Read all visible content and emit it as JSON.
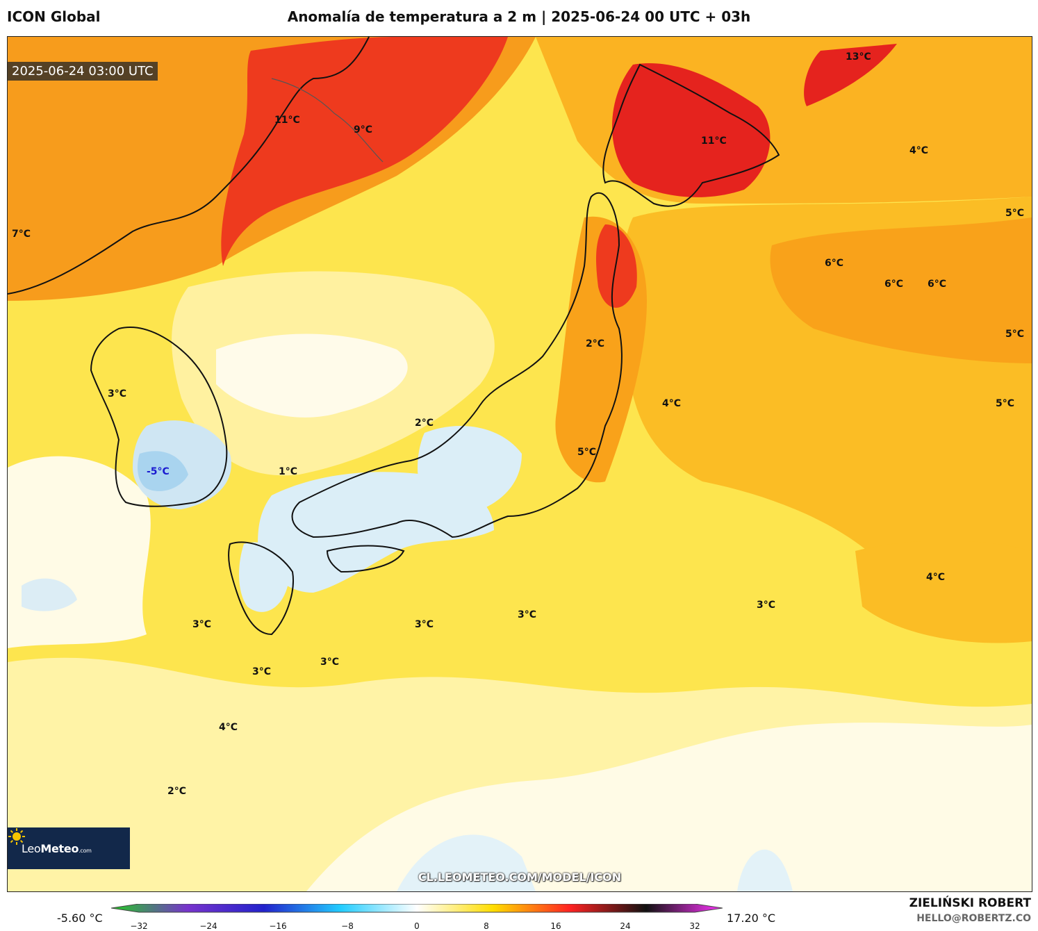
{
  "header": {
    "model": "ICON Global",
    "title": "Anomalía de temperatura a 2 m | 2025-06-24 00 UTC + 03h"
  },
  "map": {
    "valid_time": "2025-06-24 03:00 UTC",
    "watermark": "CL.LEOMETEO.COM/MODEL/ICON",
    "logo": {
      "name": "Leo",
      "bold": "Meteo",
      "suffix": ".com",
      "icon": "sun-icon"
    },
    "labels": [
      {
        "text": "11°C",
        "style": "warm"
      },
      {
        "text": "9°C",
        "style": "warm"
      },
      {
        "text": "13°C",
        "style": "warm"
      },
      {
        "text": "11°C",
        "style": "warm"
      },
      {
        "text": "4°C",
        "style": "warm"
      },
      {
        "text": "5°C",
        "style": "warm"
      },
      {
        "text": "7°C",
        "style": "warm"
      },
      {
        "text": "6°C",
        "style": "warm"
      },
      {
        "text": "6°C",
        "style": "warm"
      },
      {
        "text": "6°C",
        "style": "warm"
      },
      {
        "text": "5°C",
        "style": "warm"
      },
      {
        "text": "2°C",
        "style": "warm"
      },
      {
        "text": "4°C",
        "style": "warm"
      },
      {
        "text": "5°C",
        "style": "warm"
      },
      {
        "text": "3°C",
        "style": "warm"
      },
      {
        "text": "2°C",
        "style": "warm"
      },
      {
        "text": "5°C",
        "style": "warm"
      },
      {
        "text": "1°C",
        "style": "warm"
      },
      {
        "text": "-5°C",
        "style": "cold"
      },
      {
        "text": "3°C",
        "style": "warm"
      },
      {
        "text": "3°C",
        "style": "warm"
      },
      {
        "text": "3°C",
        "style": "warm"
      },
      {
        "text": "3°C",
        "style": "warm"
      },
      {
        "text": "4°C",
        "style": "warm"
      },
      {
        "text": "3°C",
        "style": "warm"
      },
      {
        "text": "3°C",
        "style": "warm"
      },
      {
        "text": "4°C",
        "style": "warm"
      },
      {
        "text": "2°C",
        "style": "warm"
      }
    ]
  },
  "colorbar": {
    "min_label": "-5.60 °C",
    "max_label": "17.20 °C",
    "ticks": [
      "−32",
      "−24",
      "−16",
      "−8",
      "0",
      "8",
      "16",
      "24",
      "32"
    ],
    "colors": [
      "#22cc22",
      "#7733cc",
      "#2222cc",
      "#22ccff",
      "#ffffff",
      "#ffdd00",
      "#ff2222",
      "#111111",
      "#ff33ff"
    ]
  },
  "footer": {
    "author": "ZIELIŃSKI ROBERT",
    "email": "HELLO@ROBERTZ.CO"
  }
}
